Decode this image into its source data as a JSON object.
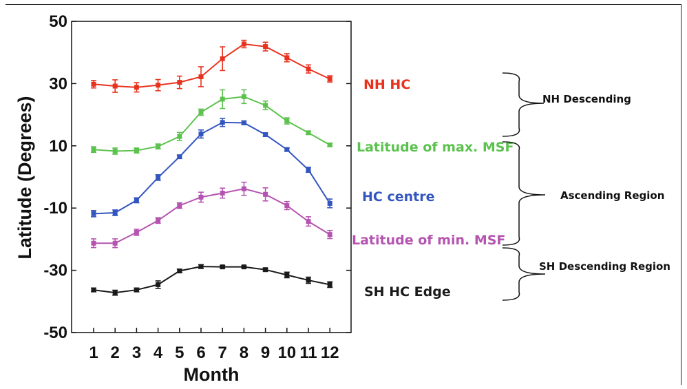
{
  "chart_data": {
    "type": "line",
    "title": "",
    "xlabel": "Month",
    "ylabel": "Latitude (Degrees)",
    "x": [
      1,
      2,
      3,
      4,
      5,
      6,
      7,
      8,
      9,
      10,
      11,
      12
    ],
    "x_tick_labels": [
      "1",
      "2",
      "3",
      "4",
      "5",
      "6",
      "7",
      "8",
      "9",
      "10",
      "11",
      "12"
    ],
    "ylim": [
      -50,
      50
    ],
    "y_ticks": [
      50,
      30,
      10,
      -10,
      -30,
      -50
    ],
    "y_tick_labels": [
      "50",
      "30",
      "10",
      "-10",
      "-30",
      "-50"
    ],
    "grid": false,
    "series": [
      {
        "name": "NH HC",
        "color": "#e8321e",
        "values": [
          29.8,
          29.2,
          28.8,
          29.5,
          30.4,
          32.2,
          38.0,
          42.7,
          41.9,
          38.3,
          34.7,
          31.5
        ],
        "errors": [
          1.2,
          2.0,
          1.5,
          1.8,
          2.0,
          3.2,
          3.8,
          1.2,
          1.4,
          1.3,
          1.3,
          1.0
        ]
      },
      {
        "name": "Latitude of max. MSF",
        "color": "#5cc24e",
        "values": [
          8.8,
          8.3,
          8.5,
          9.8,
          13.0,
          20.8,
          25.0,
          25.8,
          23.0,
          18.0,
          14.2,
          10.3
        ],
        "errors": [
          0.9,
          1.0,
          0.8,
          0.8,
          1.3,
          1.0,
          3.0,
          2.2,
          1.4,
          1.0,
          0.5,
          0.5
        ]
      },
      {
        "name": "HC centre",
        "color": "#3355c0",
        "values": [
          -11.8,
          -11.5,
          -7.5,
          -0.2,
          6.5,
          13.8,
          17.5,
          17.4,
          13.6,
          8.8,
          2.3,
          -8.5
        ],
        "errors": [
          1.0,
          0.9,
          0.8,
          0.9,
          0.5,
          1.3,
          1.3,
          0.6,
          0.5,
          0.5,
          0.8,
          1.4
        ]
      },
      {
        "name": "Latitude of min. MSF",
        "color": "#b554b0",
        "values": [
          -21.3,
          -21.3,
          -17.8,
          -14.0,
          -9.2,
          -6.5,
          -5.2,
          -3.8,
          -5.6,
          -9.2,
          -14.3,
          -18.5
        ],
        "errors": [
          1.4,
          1.4,
          1.0,
          0.9,
          0.9,
          1.6,
          1.6,
          2.1,
          2.1,
          1.3,
          1.5,
          1.3
        ]
      },
      {
        "name": "SH HC Edge",
        "color": "#1a1a1a",
        "values": [
          -36.3,
          -37.2,
          -36.3,
          -34.6,
          -30.2,
          -28.8,
          -28.9,
          -28.9,
          -29.8,
          -31.5,
          -33.2,
          -34.6
        ],
        "errors": [
          0.6,
          0.8,
          0.6,
          1.2,
          0.6,
          0.6,
          0.4,
          0.3,
          0.5,
          0.9,
          1.0,
          0.9
        ]
      }
    ],
    "regions": [
      "NH Descending",
      "Ascending Region",
      "SH Descending Region"
    ]
  }
}
